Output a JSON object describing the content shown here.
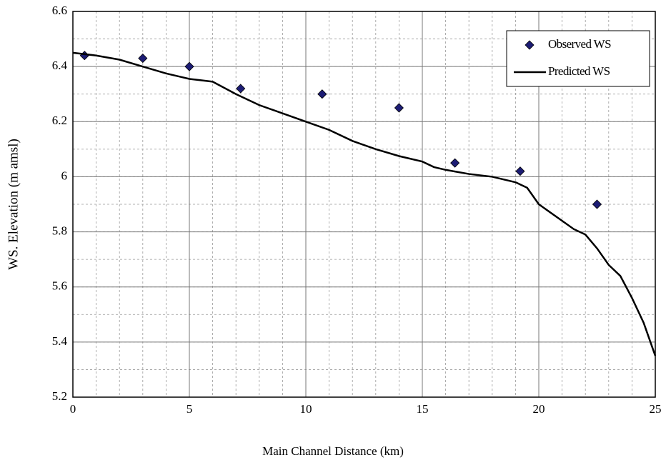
{
  "chart_data": {
    "type": "scatter-line",
    "xlabel": "Main Channel Distance (km)",
    "ylabel": "WS. Elevation (m amsl)",
    "xlim": [
      0,
      25
    ],
    "xticks": [
      0,
      5,
      10,
      15,
      20,
      25
    ],
    "xminor_step": 1,
    "ylim": [
      5.2,
      6.6
    ],
    "yticks": [
      5.2,
      5.4,
      5.6,
      5.8,
      6,
      6.2,
      6.4,
      6.6
    ],
    "yminor_step": 0.1,
    "grid": true,
    "legend": "upper right",
    "series": [
      {
        "name": "Observed WS",
        "kind": "marker",
        "color": "#1c1c74",
        "x": [
          0.5,
          3,
          5,
          7.2,
          10.7,
          14,
          16.4,
          19.2,
          22.5
        ],
        "values": [
          6.44,
          6.43,
          6.4,
          6.32,
          6.3,
          6.25,
          6.05,
          6.02,
          5.9
        ]
      },
      {
        "name": "Predicted WS",
        "kind": "line",
        "color": "#000000",
        "x": [
          0,
          1,
          2,
          3,
          4,
          5,
          5.5,
          6,
          7,
          8,
          9,
          10,
          11,
          12,
          13,
          14,
          15,
          15.5,
          16,
          17,
          18,
          19,
          19.5,
          20,
          21,
          21.5,
          22,
          22.5,
          23,
          23.5,
          24,
          24.5,
          25
        ],
        "values": [
          6.45,
          6.44,
          6.425,
          6.4,
          6.375,
          6.355,
          6.35,
          6.345,
          6.3,
          6.26,
          6.23,
          6.2,
          6.17,
          6.13,
          6.1,
          6.075,
          6.055,
          6.035,
          6.025,
          6.01,
          6.0,
          5.98,
          5.96,
          5.9,
          5.84,
          5.81,
          5.79,
          5.74,
          5.68,
          5.64,
          5.56,
          5.47,
          5.35
        ]
      }
    ]
  }
}
